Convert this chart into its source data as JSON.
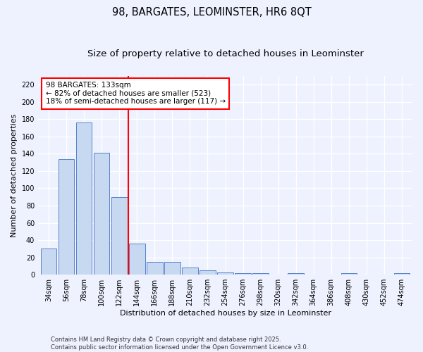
{
  "title": "98, BARGATES, LEOMINSTER, HR6 8QT",
  "subtitle": "Size of property relative to detached houses in Leominster",
  "xlabel": "Distribution of detached houses by size in Leominster",
  "ylabel": "Number of detached properties",
  "categories": [
    "34sqm",
    "56sqm",
    "78sqm",
    "100sqm",
    "122sqm",
    "144sqm",
    "166sqm",
    "188sqm",
    "210sqm",
    "232sqm",
    "254sqm",
    "276sqm",
    "298sqm",
    "320sqm",
    "342sqm",
    "364sqm",
    "386sqm",
    "408sqm",
    "430sqm",
    "452sqm",
    "474sqm"
  ],
  "values": [
    30,
    134,
    176,
    141,
    90,
    36,
    15,
    15,
    8,
    5,
    3,
    2,
    2,
    0,
    2,
    0,
    0,
    2,
    0,
    0,
    2
  ],
  "bar_color": "#c6d9f1",
  "bar_edge_color": "#4472c4",
  "vline_x": 4.5,
  "vline_color": "red",
  "annotation_text": "98 BARGATES: 133sqm\n← 82% of detached houses are smaller (523)\n18% of semi-detached houses are larger (117) →",
  "annotation_box_color": "white",
  "annotation_box_edge": "red",
  "ylim": [
    0,
    230
  ],
  "yticks": [
    0,
    20,
    40,
    60,
    80,
    100,
    120,
    140,
    160,
    180,
    200,
    220
  ],
  "footer": "Contains HM Land Registry data © Crown copyright and database right 2025.\nContains public sector information licensed under the Open Government Licence v3.0.",
  "bg_color": "#eef2ff",
  "grid_color": "#ffffff",
  "title_fontsize": 10.5,
  "subtitle_fontsize": 9.5,
  "ylabel_fontsize": 8,
  "xlabel_fontsize": 8,
  "tick_fontsize": 7,
  "footer_fontsize": 6
}
